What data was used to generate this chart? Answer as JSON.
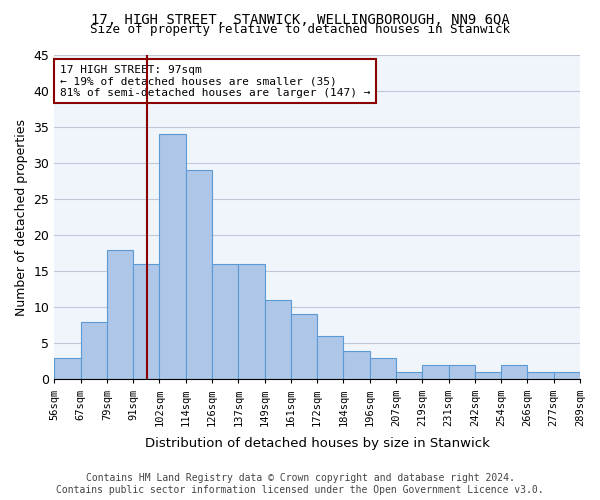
{
  "title": "17, HIGH STREET, STANWICK, WELLINGBOROUGH, NN9 6QA",
  "subtitle": "Size of property relative to detached houses in Stanwick",
  "xlabel": "Distribution of detached houses by size in Stanwick",
  "ylabel": "Number of detached properties",
  "bar_values": [
    3,
    8,
    18,
    16,
    34,
    29,
    16,
    16,
    11,
    9,
    6,
    4,
    3,
    1,
    2,
    2,
    1,
    2,
    1,
    1
  ],
  "x_labels": [
    "56sqm",
    "67sqm",
    "79sqm",
    "91sqm",
    "102sqm",
    "114sqm",
    "126sqm",
    "137sqm",
    "149sqm",
    "161sqm",
    "172sqm",
    "184sqm",
    "196sqm",
    "207sqm",
    "219sqm",
    "231sqm",
    "242sqm",
    "254sqm",
    "266sqm",
    "277sqm"
  ],
  "bar_color": "#aec6e8",
  "bar_edge_color": "#5b9bd5",
  "ylim": [
    0,
    45
  ],
  "yticks": [
    0,
    5,
    10,
    15,
    20,
    25,
    30,
    35,
    40,
    45
  ],
  "property_sqm": 97,
  "vline_color": "#8b0000",
  "annotation_line1": "17 HIGH STREET: 97sqm",
  "annotation_line2": "← 19% of detached houses are smaller (35)",
  "annotation_line3": "81% of semi-detached houses are larger (147) →",
  "annotation_box_color": "#8b0000",
  "footer_line1": "Contains HM Land Registry data © Crown copyright and database right 2024.",
  "footer_line2": "Contains public sector information licensed under the Open Government Licence v3.0.",
  "background_color": "#f0f4fb",
  "grid_color": "#c0c8d8"
}
